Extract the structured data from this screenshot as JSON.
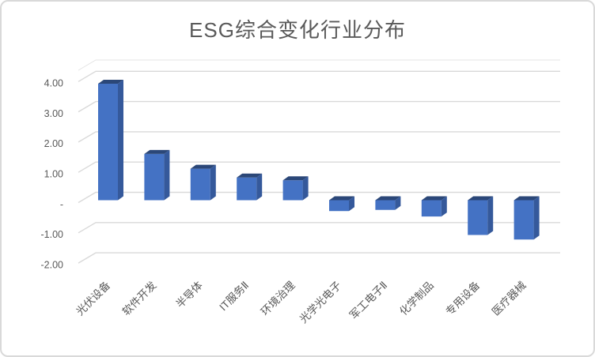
{
  "chart_data": {
    "type": "bar",
    "variant": "3d-column",
    "title": "ESG综合变化行业分布",
    "categories": [
      "光伏设备",
      "软件开发",
      "半导体",
      "IT服务Ⅱ",
      "环境治理",
      "光学光电子",
      "军工电子Ⅱ",
      "化学制品",
      "专用设备",
      "医疗器械"
    ],
    "values": [
      3.85,
      1.53,
      1.04,
      0.75,
      0.66,
      -0.36,
      -0.32,
      -0.54,
      -1.15,
      -1.3
    ],
    "xlabel": "",
    "ylabel": "",
    "ylim": [
      -2,
      4.4
    ],
    "grid": true,
    "legend_position": "none",
    "yticks": [
      {
        "v": 4,
        "label": "4.00"
      },
      {
        "v": 3,
        "label": "3.00"
      },
      {
        "v": 2,
        "label": "2.00"
      },
      {
        "v": 1,
        "label": "1.00"
      },
      {
        "v": 0,
        "label": "-"
      },
      {
        "v": -1,
        "label": "-1.00"
      },
      {
        "v": -2,
        "label": "-2.00"
      }
    ]
  },
  "colors": {
    "background": "#FFFFFF",
    "frame_border": "#D9D9D9",
    "title_text": "#595959",
    "axis_text": "#595959",
    "gridline": "#D9D9D9",
    "wall_edge": "#E4E4E4",
    "bar_front": "#4472C4",
    "bar_top": "#2B4778",
    "bar_side": "#35599B"
  }
}
